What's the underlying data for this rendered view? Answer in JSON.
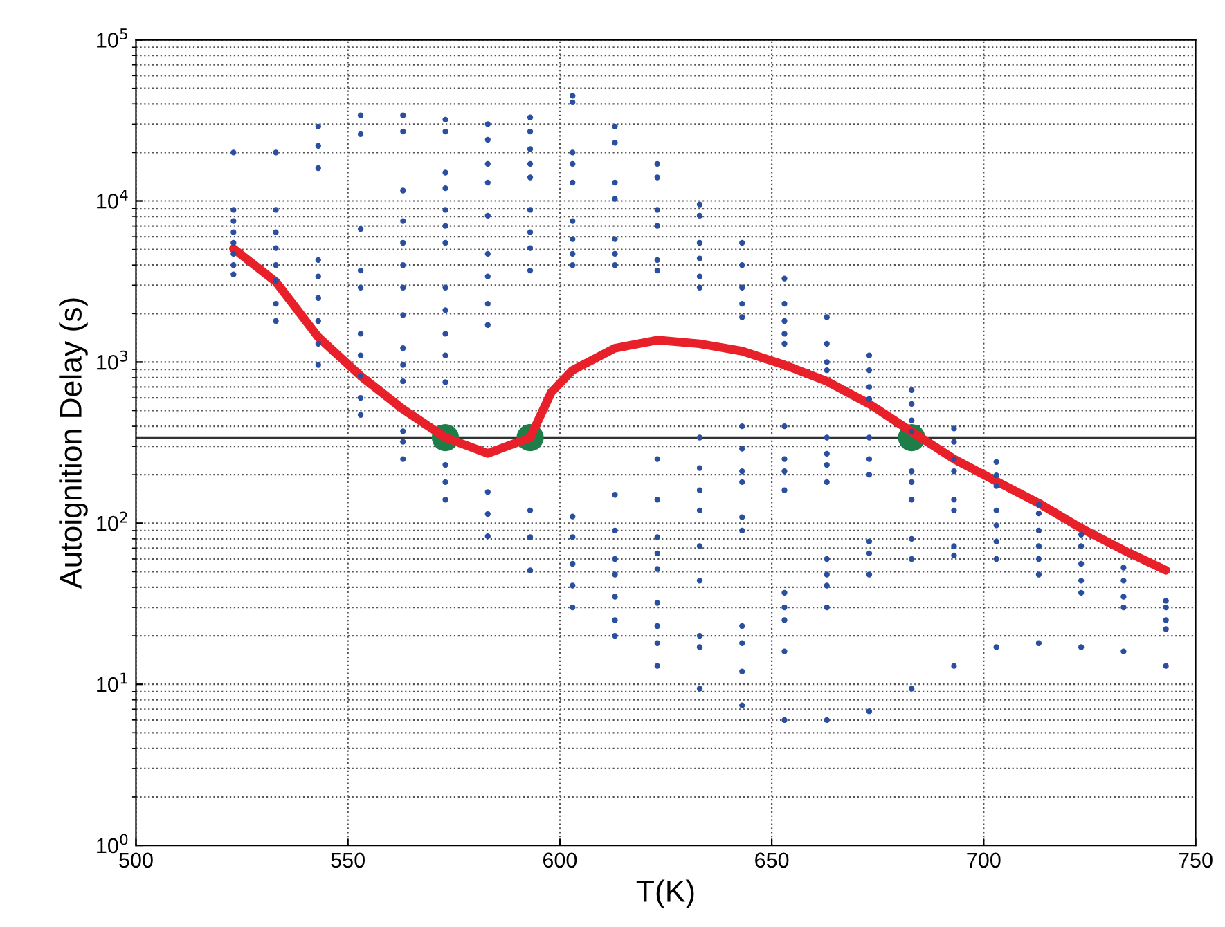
{
  "chart_data": {
    "type": "scatter",
    "xlabel": "T(K)",
    "ylabel": "Autoignition Delay (s)",
    "xlim": [
      500,
      750
    ],
    "xticks": [
      500,
      550,
      600,
      650,
      700,
      750
    ],
    "ylim": [
      1,
      100000
    ],
    "yticks": [
      {
        "value": 1,
        "label": "10$^{0}$"
      },
      {
        "value": 10,
        "label": "10$^{1}$"
      },
      {
        "value": 100,
        "label": "10$^{2}$"
      },
      {
        "value": 1000,
        "label": "10$^{3}$"
      },
      {
        "value": 10000,
        "label": "10$^{4}$"
      },
      {
        "value": 100000,
        "label": "10$^{5}$"
      }
    ],
    "log": "y",
    "grid": true,
    "legend": false,
    "ref_lines": [
      {
        "axis": "y",
        "value": 340,
        "color": "#333333",
        "line_style": "solid"
      }
    ],
    "series": [
      {
        "color": "#2b4fa0",
        "marker": "circle",
        "x": [
          523,
          523,
          523,
          523,
          523,
          523,
          523,
          523,
          533,
          533,
          533,
          533,
          533,
          533,
          533,
          533,
          543,
          543,
          543,
          543,
          543,
          543,
          543,
          543,
          543,
          553,
          553,
          553,
          553,
          553,
          553,
          553,
          553,
          553,
          553,
          563,
          563,
          563,
          563,
          563,
          563,
          563,
          563,
          563,
          563,
          563,
          563,
          563,
          563,
          573,
          573,
          573,
          573,
          573,
          573,
          573,
          573,
          573,
          573,
          573,
          573,
          573,
          573,
          573,
          583,
          583,
          583,
          583,
          583,
          583,
          583,
          583,
          583,
          583,
          583,
          583,
          593,
          593,
          593,
          593,
          593,
          593,
          593,
          593,
          593,
          593,
          593,
          593,
          603,
          603,
          603,
          603,
          603,
          603,
          603,
          603,
          603,
          603,
          603,
          603,
          603,
          603,
          613,
          613,
          613,
          613,
          613,
          613,
          613,
          613,
          613,
          613,
          613,
          613,
          613,
          613,
          623,
          623,
          623,
          623,
          623,
          623,
          623,
          623,
          623,
          623,
          623,
          623,
          623,
          623,
          623,
          633,
          633,
          633,
          633,
          633,
          633,
          633,
          633,
          633,
          633,
          633,
          633,
          633,
          633,
          633,
          643,
          643,
          643,
          643,
          643,
          643,
          643,
          643,
          643,
          643,
          643,
          643,
          643,
          643,
          643,
          653,
          653,
          653,
          653,
          653,
          653,
          653,
          653,
          653,
          653,
          653,
          653,
          653,
          653,
          663,
          663,
          663,
          663,
          663,
          663,
          663,
          663,
          663,
          663,
          663,
          663,
          663,
          673,
          673,
          673,
          673,
          673,
          673,
          673,
          673,
          673,
          673,
          673,
          683,
          683,
          683,
          683,
          683,
          683,
          683,
          683,
          683,
          683,
          693,
          693,
          693,
          693,
          693,
          693,
          693,
          693,
          693,
          703,
          703,
          703,
          703,
          703,
          703,
          703,
          703,
          713,
          713,
          713,
          713,
          713,
          713,
          713,
          723,
          723,
          723,
          723,
          723,
          723,
          733,
          733,
          733,
          733,
          733,
          743,
          743,
          743,
          743,
          743
        ],
        "values": [
          20000,
          8800,
          7500,
          6400,
          5500,
          4700,
          4000,
          3500,
          20000,
          8800,
          6400,
          5100,
          4000,
          3200,
          2300,
          1800,
          29000,
          22000,
          16000,
          4300,
          3400,
          2500,
          1800,
          1300,
          960,
          34000,
          26000,
          6700,
          3700,
          2900,
          1500,
          1100,
          820,
          600,
          470,
          34000,
          27000,
          11600,
          7500,
          5500,
          4000,
          2900,
          1960,
          1220,
          960,
          760,
          372,
          320,
          250,
          32000,
          27000,
          15000,
          12000,
          8800,
          7000,
          5500,
          2900,
          2100,
          1500,
          1100,
          750,
          230,
          180,
          140,
          30000,
          24000,
          17000,
          13000,
          8100,
          4700,
          3400,
          2300,
          1700,
          156,
          114,
          83,
          33000,
          27000,
          21000,
          17000,
          14000,
          8800,
          6400,
          5100,
          3700,
          120,
          82,
          51,
          45000,
          41000,
          20000,
          17000,
          13000,
          7500,
          5800,
          4700,
          4000,
          110,
          82,
          56,
          41,
          30,
          29000,
          23000,
          13000,
          10300,
          5800,
          4700,
          4000,
          150,
          90,
          60,
          48,
          35,
          25,
          20,
          17000,
          14000,
          8800,
          7000,
          4300,
          3700,
          250,
          140,
          82,
          65,
          52,
          32,
          23,
          18,
          13,
          9500,
          8100,
          5500,
          4400,
          3400,
          2900,
          340,
          220,
          160,
          120,
          72,
          44,
          20,
          17,
          9.4,
          5500,
          4000,
          2900,
          2300,
          1900,
          400,
          290,
          210,
          180,
          109,
          90,
          23,
          18,
          12,
          7.4,
          3300,
          2300,
          1800,
          1500,
          1300,
          400,
          250,
          210,
          160,
          37,
          30,
          25,
          16,
          6,
          1900,
          1300,
          1000,
          890,
          340,
          270,
          230,
          180,
          60,
          48,
          41,
          30,
          6,
          1100,
          890,
          700,
          590,
          340,
          250,
          200,
          77,
          65,
          48,
          6.8,
          670,
          550,
          435,
          370,
          210,
          180,
          140,
          80,
          60,
          9.4,
          387,
          320,
          250,
          210,
          140,
          120,
          72,
          63,
          13,
          240,
          198,
          170,
          120,
          97,
          77,
          60,
          17,
          130,
          115,
          90,
          72,
          60,
          48,
          18,
          85,
          72,
          56,
          44,
          37,
          17,
          53,
          44,
          35,
          30,
          16,
          33,
          30,
          25,
          22,
          13
        ]
      },
      {
        "type": "line",
        "color": "#e8202a",
        "marker": "none",
        "line_style": "solid",
        "x": [
          523,
          533,
          543,
          553,
          563,
          573,
          583,
          593,
          598,
          603,
          613,
          623,
          633,
          643,
          653,
          663,
          673,
          683,
          693,
          703,
          713,
          723,
          733,
          743
        ],
        "values": [
          5060,
          3150,
          1430,
          820,
          510,
          340,
          271,
          340,
          650,
          890,
          1220,
          1370,
          1300,
          1170,
          960,
          760,
          550,
          370,
          250,
          182,
          133,
          93,
          68,
          51
        ]
      },
      {
        "color": "#1e7e4a",
        "marker": "circle",
        "x": [
          573,
          593,
          683
        ],
        "values": [
          340,
          340,
          340
        ]
      }
    ]
  }
}
